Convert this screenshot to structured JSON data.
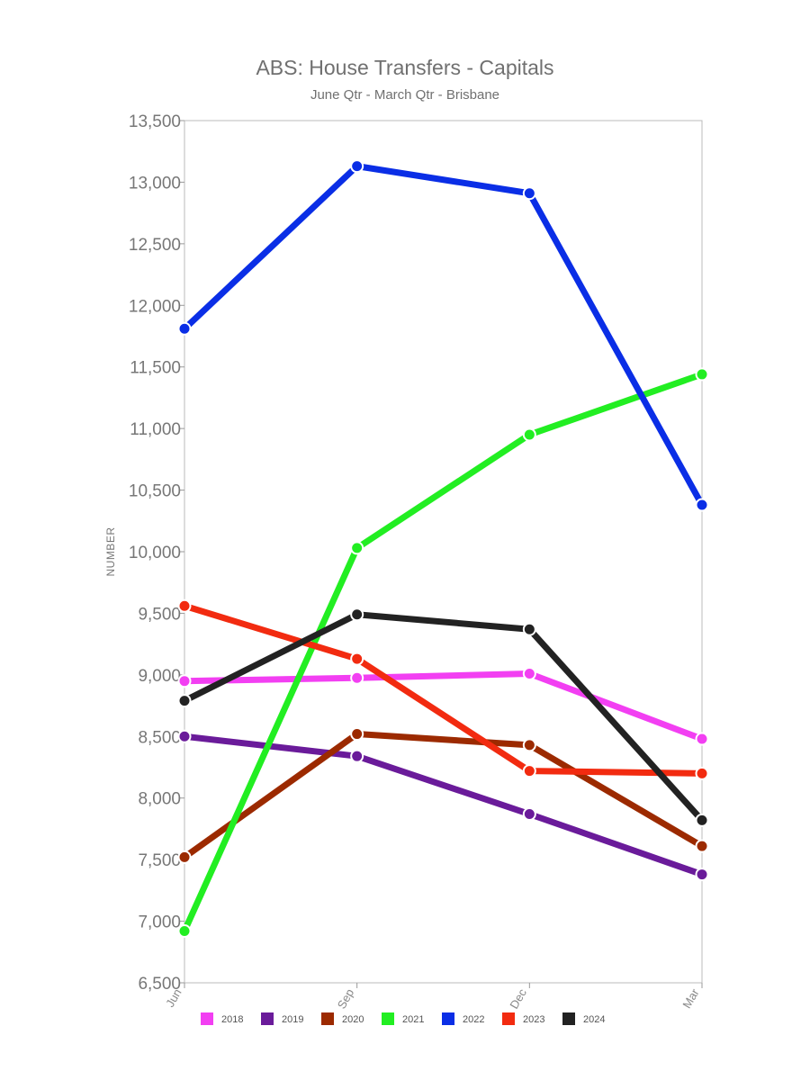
{
  "chart_data": {
    "type": "line",
    "title": "ABS: House Transfers - Capitals",
    "subtitle": "June Qtr - March Qtr - Brisbane",
    "xlabel": "",
    "ylabel": "NUMBER",
    "categories": [
      "Jun",
      "Sep",
      "Dec",
      "Mar"
    ],
    "ylim": [
      6500,
      13500
    ],
    "yticks": [
      6500,
      7000,
      7500,
      8000,
      8500,
      9000,
      9500,
      10000,
      10500,
      11000,
      11500,
      12000,
      12500,
      13000,
      13500
    ],
    "grid": false,
    "legend_position": "bottom",
    "series": [
      {
        "name": "2018",
        "color": "#f23ff2",
        "values": [
          8950,
          8975,
          9010,
          8480
        ]
      },
      {
        "name": "2019",
        "color": "#6a1b9a",
        "values": [
          8500,
          8340,
          7870,
          7380
        ]
      },
      {
        "name": "2020",
        "color": "#9c2a00",
        "values": [
          7520,
          8520,
          8430,
          7610
        ]
      },
      {
        "name": "2021",
        "color": "#22ee22",
        "values": [
          6920,
          10030,
          10950,
          11440
        ]
      },
      {
        "name": "2022",
        "color": "#0a2ee6",
        "values": [
          11810,
          13130,
          12910,
          10380
        ]
      },
      {
        "name": "2023",
        "color": "#f22b10",
        "values": [
          9560,
          9130,
          8220,
          8200
        ]
      },
      {
        "name": "2024",
        "color": "#222222",
        "values": [
          8790,
          9490,
          9370,
          7820
        ]
      }
    ]
  }
}
